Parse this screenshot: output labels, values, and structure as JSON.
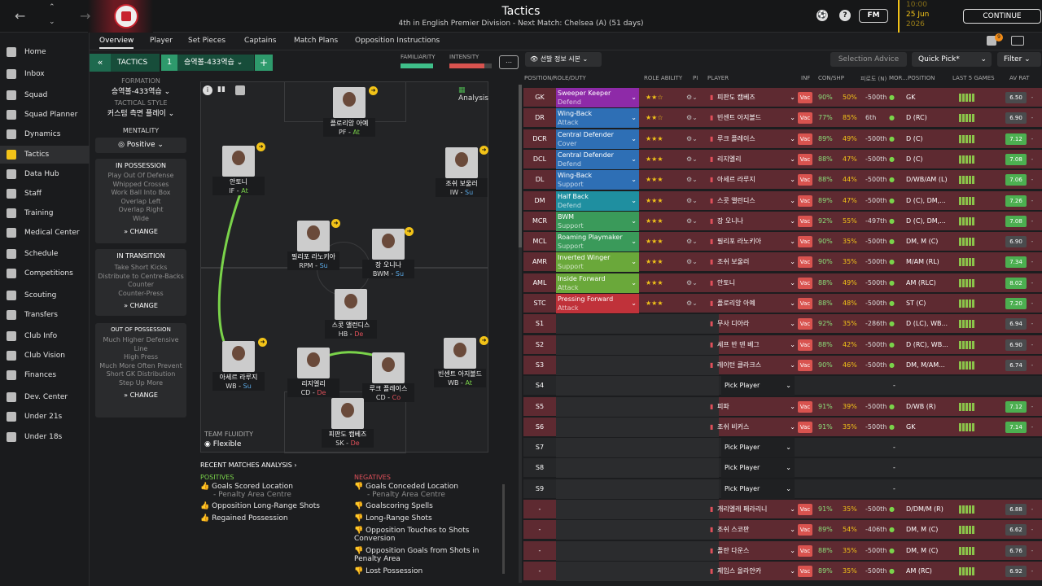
{
  "topbar": {
    "title": "Tactics",
    "subtitle": "4th in English Premier Division - Next Match: Chelsea (A) (51 days)",
    "fm_label": "FM",
    "date_time": "10:00",
    "date": "25 Jun",
    "year": "2026",
    "continue_label": "CONTINUE"
  },
  "sidebar": {
    "items": [
      {
        "label": "Home"
      },
      {
        "label": "Inbox"
      },
      {
        "label": "Squad"
      },
      {
        "label": "Squad Planner"
      },
      {
        "label": "Dynamics"
      },
      {
        "label": "Tactics"
      },
      {
        "label": "Data Hub"
      },
      {
        "label": "Staff"
      },
      {
        "label": "Training"
      },
      {
        "label": "Medical Center"
      },
      {
        "label": "Schedule"
      },
      {
        "label": "Competitions"
      },
      {
        "label": "Scouting"
      },
      {
        "label": "Transfers"
      },
      {
        "label": "Club Info"
      },
      {
        "label": "Club Vision"
      },
      {
        "label": "Finances"
      },
      {
        "label": "Dev. Center"
      },
      {
        "label": "Under 21s"
      },
      {
        "label": "Under 18s"
      }
    ]
  },
  "tabs": [
    "Overview",
    "Player",
    "Set Pieces",
    "Captains",
    "Match Plans",
    "Opposition Instructions"
  ],
  "tactics_bar": {
    "label": "TACTICS",
    "number": "1",
    "name": "승역볼-433역습"
  },
  "familiarity_label": "FAMILIARITY",
  "intensity_label": "INTENSITY",
  "formation": {
    "label": "FORMATION",
    "value": "승역볼-433역습",
    "style_label": "TACTICAL STYLE",
    "style_value": "커스텀 측면 플레이"
  },
  "mentality": {
    "label": "MENTALITY",
    "value": "Positive"
  },
  "in_possession": {
    "label": "IN POSSESSION",
    "items": [
      "Play Out Of Defense",
      "Whipped Crosses",
      "Work Ball Into Box",
      "Overlap Left",
      "Overlap Right",
      "Wide"
    ],
    "change": "CHANGE"
  },
  "in_transition": {
    "label": "IN TRANSITION",
    "items": [
      "Take Short Kicks",
      "Distribute to Centre-Backs",
      "Counter",
      "Counter-Press"
    ],
    "change": "CHANGE"
  },
  "out_of_possession": {
    "label": "OUT OF POSSESSION",
    "items": [
      "Much Higher Defensive Line",
      "High Press",
      "Much More Often Prevent Short GK Distribution",
      "Step Up More"
    ],
    "change": "CHANGE"
  },
  "analysis_label": "Analysis",
  "team_fluidity": {
    "label": "TEAM FLUIDITY",
    "value": "Flexible"
  },
  "pitch_players": [
    {
      "name": "플로리앙 아예",
      "role": "PF",
      "duty": "At"
    },
    {
      "name": "안토니",
      "role": "IF",
      "duty": "At"
    },
    {
      "name": "조쉬 보울러",
      "role": "IW",
      "duty": "Su"
    },
    {
      "name": "필리포 라노키아",
      "role": "RPM",
      "duty": "Su"
    },
    {
      "name": "장 오니나",
      "role": "BWM",
      "duty": "Su"
    },
    {
      "name": "스콧 앨런디스",
      "role": "HB",
      "duty": "De"
    },
    {
      "name": "아세르 라루지",
      "role": "WB",
      "duty": "Su"
    },
    {
      "name": "리지엘리",
      "role": "CD",
      "duty": "De"
    },
    {
      "name": "루크 플레이스",
      "role": "CD",
      "duty": "Co"
    },
    {
      "name": "빈센트 아지볼드",
      "role": "WB",
      "duty": "At"
    },
    {
      "name": "피판도 캠베즈",
      "role": "SK",
      "duty": "De"
    }
  ],
  "recent_matches": {
    "title": "RECENT MATCHES ANALYSIS",
    "positives_label": "POSITIVES",
    "positives": [
      {
        "text": "Goals Scored Location",
        "sub": "- Penalty Area Centre"
      },
      {
        "text": "Opposition Long-Range Shots",
        "sub": ""
      },
      {
        "text": "Regained Possession",
        "sub": ""
      }
    ],
    "negatives_label": "NEGATIVES",
    "negatives": [
      {
        "text": "Goals Conceded Location",
        "sub": "- Penalty Area Centre"
      },
      {
        "text": "Goalscoring Spells",
        "sub": ""
      },
      {
        "text": "Long-Range Shots",
        "sub": ""
      },
      {
        "text": "Opposition Touches to Shots Conversion",
        "sub": ""
      },
      {
        "text": "Opposition Goals from Shots in Penalty Area",
        "sub": ""
      },
      {
        "text": "Lost Possession",
        "sub": ""
      }
    ]
  },
  "right_toolbar": {
    "view_label": "선발 정보 시본",
    "selection_advice": "Selection Advice",
    "quick_pick": "Quick Pick*",
    "filter": "Filter"
  },
  "table_headers": {
    "pos": "POSITION/ROLE/DUTY",
    "role_ability": "ROLE ABILITY",
    "pi": "PI",
    "player": "PLAYER",
    "inf": "INF",
    "con": "CON/SHP",
    "loan": "피로도 (N)",
    "mor": "MOR...",
    "position": "POSITION",
    "last5": "LAST 5 GAMES",
    "av": "AV RAT"
  },
  "rows": [
    {
      "pos": "GK",
      "role": "Sweeper Keeper",
      "duty": "Defend",
      "color": "#8e2aa8",
      "stars": "★★☆",
      "player": "피판도 캠베즈",
      "con": "90%",
      "shp": "50%",
      "loan": "-500th",
      "posn": "GK",
      "rating": "6.50",
      "rc": "#4a4b4d"
    },
    {
      "pos": "DR",
      "role": "Wing-Back",
      "duty": "Attack",
      "color": "#2e6fb5",
      "stars": "★★☆",
      "player": "빈센트 아지볼드",
      "con": "77%",
      "shp": "85%",
      "loan": "6th",
      "posn": "D (RC)",
      "rating": "6.90",
      "rc": "#4a4b4d"
    },
    {
      "pos": "DCR",
      "role": "Central Defender",
      "duty": "Cover",
      "color": "#2e6fb5",
      "stars": "★★★",
      "player": "루크 플레이스",
      "con": "89%",
      "shp": "49%",
      "loan": "-500th",
      "posn": "D (C)",
      "rating": "7.12",
      "rc": "#4caf50"
    },
    {
      "pos": "DCL",
      "role": "Central Defender",
      "duty": "Defend",
      "color": "#2e6fb5",
      "stars": "★★★",
      "player": "리지엘리",
      "con": "88%",
      "shp": "47%",
      "loan": "-500th",
      "posn": "D (C)",
      "rating": "7.08",
      "rc": "#4caf50"
    },
    {
      "pos": "DL",
      "role": "Wing-Back",
      "duty": "Support",
      "color": "#2e6fb5",
      "stars": "★★★",
      "player": "아세르 라루지",
      "con": "88%",
      "shp": "44%",
      "loan": "-500th",
      "posn": "D/WB/AM (L)",
      "rating": "7.06",
      "rc": "#4caf50"
    },
    {
      "pos": "DM",
      "role": "Half Back",
      "duty": "Defend",
      "color": "#1f8fa0",
      "stars": "★★★",
      "player": "스콧 앨런디스",
      "con": "89%",
      "shp": "47%",
      "loan": "-500th",
      "posn": "D (C), DM,...",
      "rating": "7.26",
      "rc": "#4caf50"
    },
    {
      "pos": "MCR",
      "role": "BWM",
      "duty": "Support",
      "color": "#3a9a5a",
      "stars": "★★★",
      "player": "장 오니나",
      "con": "92%",
      "shp": "55%",
      "loan": "-497th",
      "posn": "D (C), DM,...",
      "rating": "7.08",
      "rc": "#4caf50"
    },
    {
      "pos": "MCL",
      "role": "Roaming Playmaker",
      "duty": "Support",
      "color": "#3a9a5a",
      "stars": "★★★",
      "player": "필리포 라노키아",
      "con": "90%",
      "shp": "35%",
      "loan": "-500th",
      "posn": "DM, M (C)",
      "rating": "6.90",
      "rc": "#4a4b4d"
    },
    {
      "pos": "AMR",
      "role": "Inverted Winger",
      "duty": "Support",
      "color": "#6aa83a",
      "stars": "★★★",
      "player": "조쉬 보울러",
      "con": "90%",
      "shp": "35%",
      "loan": "-500th",
      "posn": "M/AM (RL)",
      "rating": "7.34",
      "rc": "#4caf50"
    },
    {
      "pos": "AML",
      "role": "Inside Forward",
      "duty": "Attack",
      "color": "#6aa83a",
      "stars": "★★★",
      "player": "안토니",
      "con": "88%",
      "shp": "49%",
      "loan": "-500th",
      "posn": "AM (RLC)",
      "rating": "8.02",
      "rc": "#4caf50"
    },
    {
      "pos": "STC",
      "role": "Pressing Forward",
      "duty": "Attack",
      "color": "#c0323a",
      "stars": "★★★",
      "player": "플로리앙 아예",
      "con": "88%",
      "shp": "48%",
      "loan": "-500th",
      "posn": "ST (C)",
      "rating": "7.20",
      "rc": "#4caf50"
    },
    {
      "pos": "S1",
      "role": "",
      "duty": "",
      "color": "",
      "stars": "",
      "player": "무사 디아라",
      "con": "92%",
      "shp": "35%",
      "loan": "-286th",
      "posn": "D (LC), WB...",
      "rating": "6.94",
      "rc": "#4a4b4d"
    },
    {
      "pos": "S2",
      "role": "",
      "duty": "",
      "color": "",
      "stars": "",
      "player": "세프 반 덴 베그",
      "con": "88%",
      "shp": "42%",
      "loan": "-500th",
      "posn": "D (RC), WB...",
      "rating": "6.90",
      "rc": "#4a4b4d"
    },
    {
      "pos": "S3",
      "role": "",
      "duty": "",
      "color": "",
      "stars": "",
      "player": "레이턴 클라크스",
      "con": "90%",
      "shp": "46%",
      "loan": "-500th",
      "posn": "DM, M/AM...",
      "rating": "6.74",
      "rc": "#4a4b4d"
    },
    {
      "pos": "S4",
      "role": "",
      "duty": "",
      "color": "",
      "stars": "",
      "player": "Pick Player",
      "con": "",
      "shp": "",
      "loan": "",
      "posn": "-",
      "rating": "",
      "rc": ""
    },
    {
      "pos": "S5",
      "role": "",
      "duty": "",
      "color": "",
      "stars": "",
      "player": "피파",
      "con": "91%",
      "shp": "39%",
      "loan": "-500th",
      "posn": "D/WB (R)",
      "rating": "7.12",
      "rc": "#4caf50"
    },
    {
      "pos": "S6",
      "role": "",
      "duty": "",
      "color": "",
      "stars": "",
      "player": "조쉬 비커스",
      "con": "91%",
      "shp": "35%",
      "loan": "-500th",
      "posn": "GK",
      "rating": "7.14",
      "rc": "#4caf50"
    },
    {
      "pos": "S7",
      "role": "",
      "duty": "",
      "color": "",
      "stars": "",
      "player": "Pick Player",
      "con": "",
      "shp": "",
      "loan": "",
      "posn": "-",
      "rating": "",
      "rc": ""
    },
    {
      "pos": "S8",
      "role": "",
      "duty": "",
      "color": "",
      "stars": "",
      "player": "Pick Player",
      "con": "",
      "shp": "",
      "loan": "",
      "posn": "-",
      "rating": "",
      "rc": ""
    },
    {
      "pos": "S9",
      "role": "",
      "duty": "",
      "color": "",
      "stars": "",
      "player": "Pick Player",
      "con": "",
      "shp": "",
      "loan": "",
      "posn": "-",
      "rating": "",
      "rc": ""
    },
    {
      "pos": "-",
      "role": "",
      "duty": "",
      "color": "",
      "stars": "",
      "player": "개리엘레 페라리니",
      "con": "91%",
      "shp": "35%",
      "loan": "-500th",
      "posn": "D/DM/M (R)",
      "rating": "6.88",
      "rc": "#4a4b4d"
    },
    {
      "pos": "-",
      "role": "",
      "duty": "",
      "color": "",
      "stars": "",
      "player": "조쉬 스코판",
      "con": "89%",
      "shp": "54%",
      "loan": "-406th",
      "posn": "DM, M (C)",
      "rating": "6.62",
      "rc": "#4a4b4d"
    },
    {
      "pos": "-",
      "role": "",
      "duty": "",
      "color": "",
      "stars": "",
      "player": "폴란 다운스",
      "con": "88%",
      "shp": "35%",
      "loan": "-500th",
      "posn": "DM, M (C)",
      "rating": "6.76",
      "rc": "#4a4b4d"
    },
    {
      "pos": "-",
      "role": "",
      "duty": "",
      "color": "",
      "stars": "",
      "player": "제임스 올라얀카",
      "con": "89%",
      "shp": "35%",
      "loan": "-500th",
      "posn": "AM (RC)",
      "rating": "6.92",
      "rc": "#4a4b4d"
    }
  ]
}
